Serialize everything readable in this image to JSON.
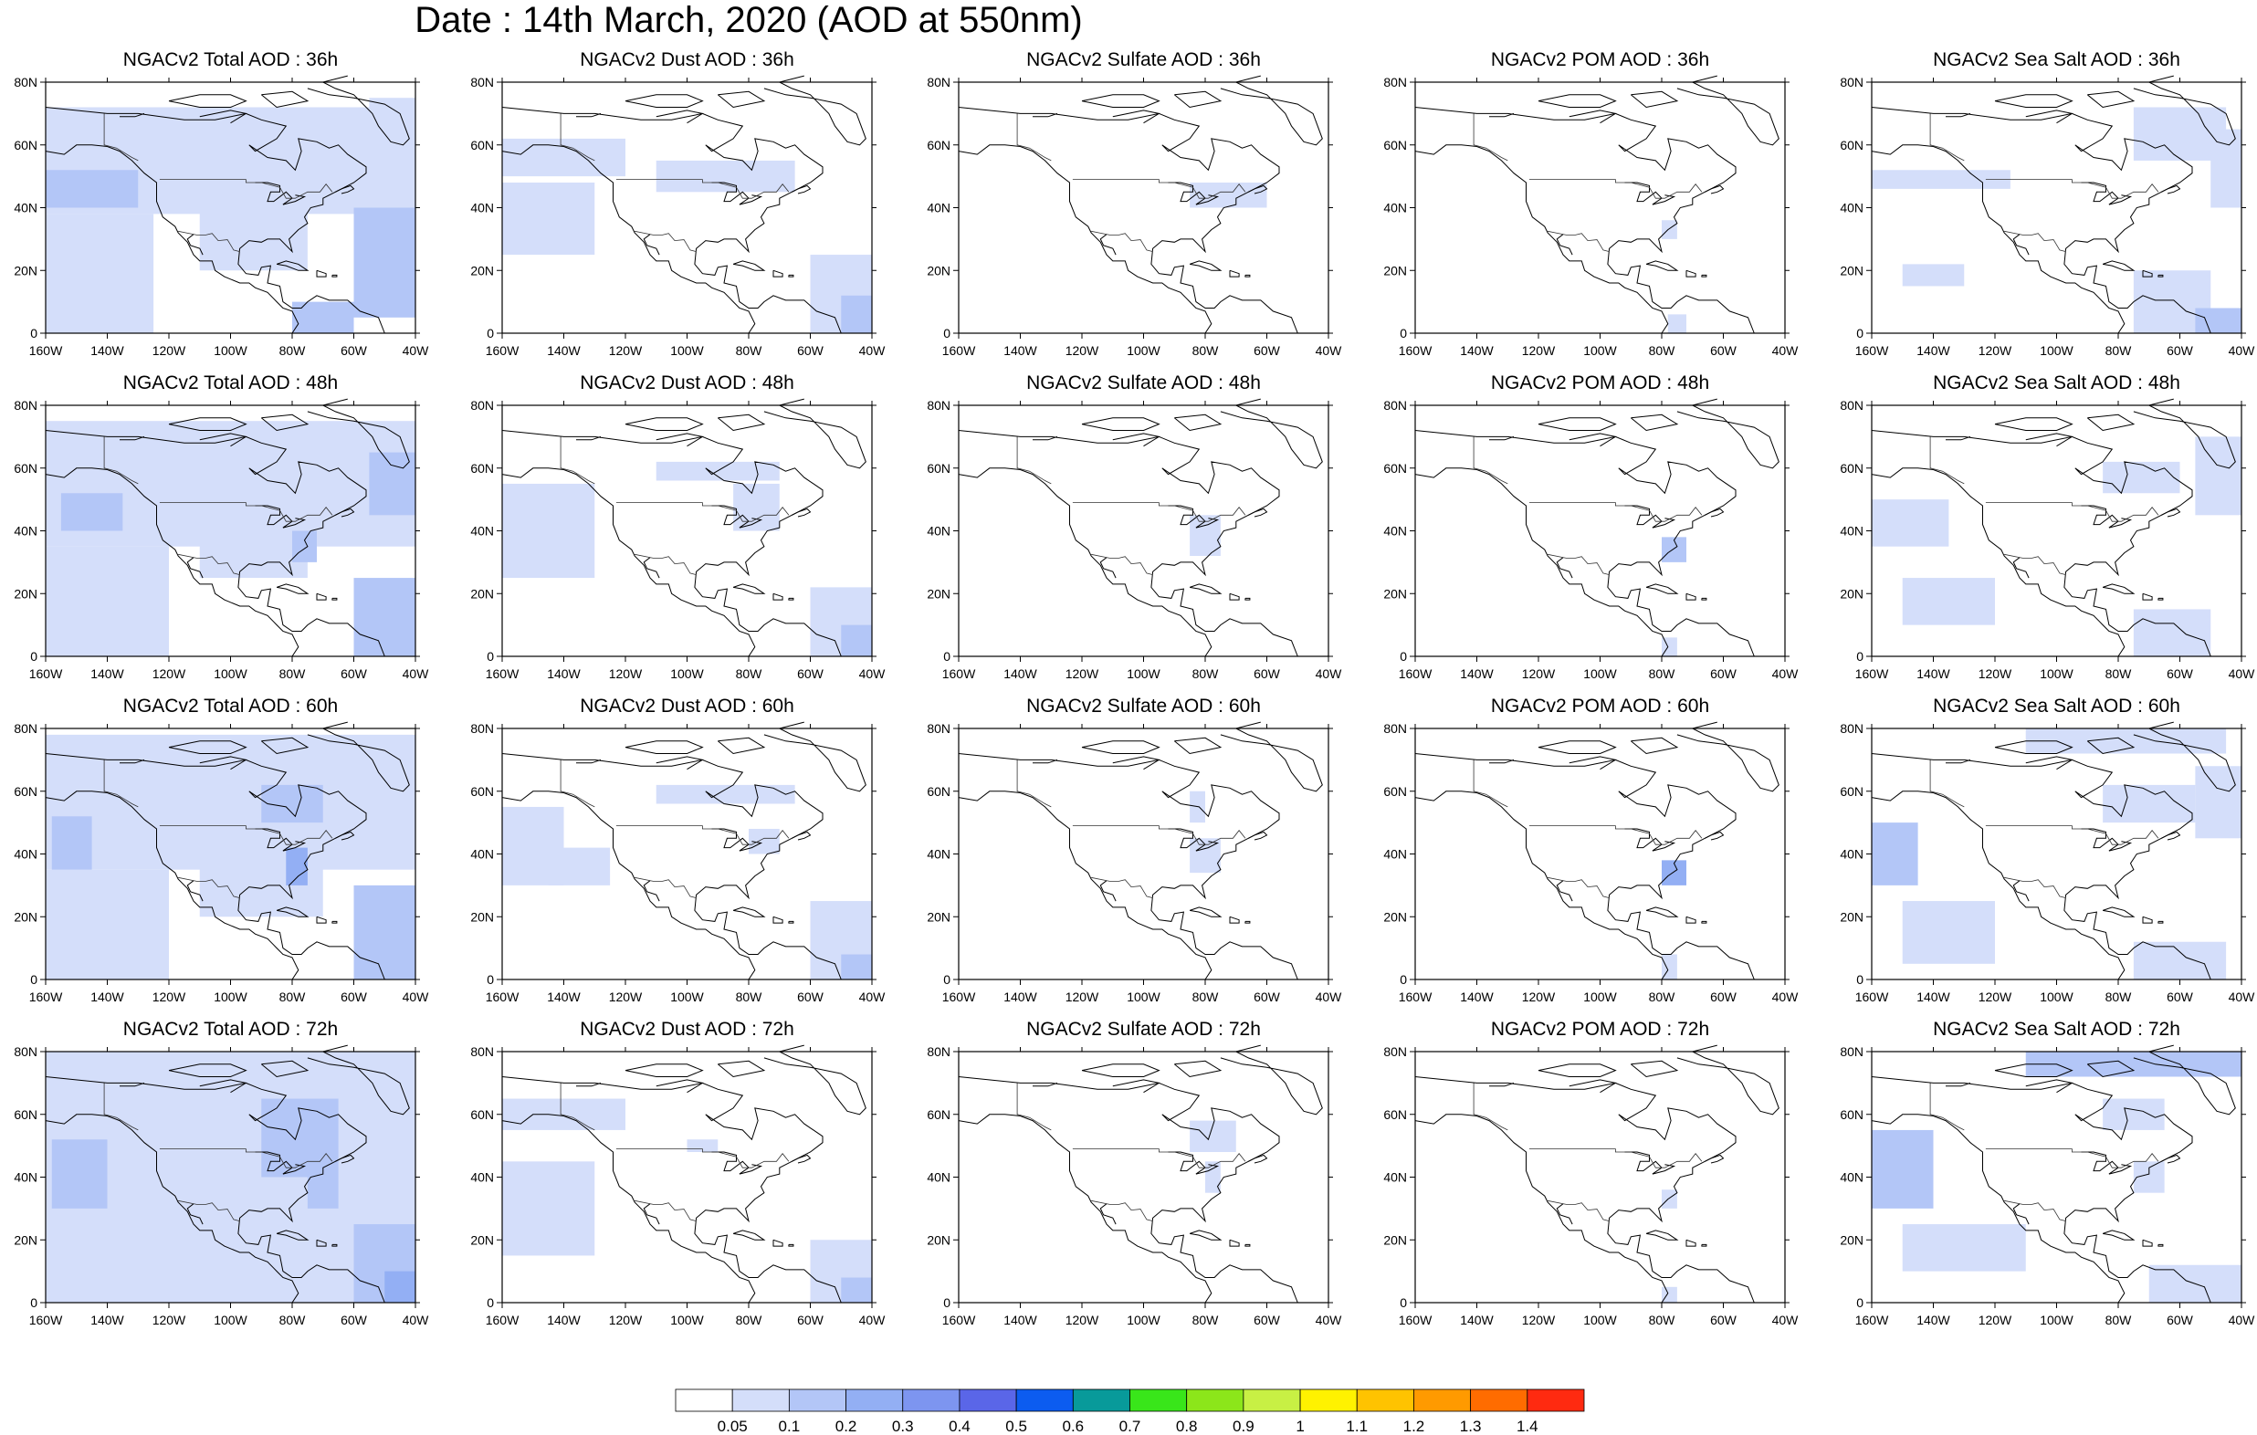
{
  "title": "Date : 14th March, 2020 (AOD at 550nm)",
  "chart_data": {
    "type": "heatmap",
    "layout": {
      "rows": 4,
      "columns": 5
    },
    "rows_forecast_hour": [
      "36h",
      "48h",
      "60h",
      "72h"
    ],
    "columns_species": [
      "Total",
      "Dust",
      "Sulfate",
      "POM",
      "Sea Salt"
    ],
    "panel_titles": [
      [
        "NGACv2 Total AOD : 36h",
        "NGACv2 Dust AOD : 36h",
        "NGACv2 Sulfate AOD : 36h",
        "NGACv2 POM AOD : 36h",
        "NGACv2 Sea Salt AOD : 36h"
      ],
      [
        "NGACv2 Total AOD : 48h",
        "NGACv2 Dust AOD : 48h",
        "NGACv2 Sulfate AOD : 48h",
        "NGACv2 POM AOD : 48h",
        "NGACv2 Sea Salt AOD : 48h"
      ],
      [
        "NGACv2 Total AOD : 60h",
        "NGACv2 Dust AOD : 60h",
        "NGACv2 Sulfate AOD : 60h",
        "NGACv2 POM AOD : 60h",
        "NGACv2 Sea Salt AOD : 60h"
      ],
      [
        "NGACv2 Total AOD : 72h",
        "NGACv2 Dust AOD : 72h",
        "NGACv2 Sulfate AOD : 72h",
        "NGACv2 POM AOD : 72h",
        "NGACv2 Sea Salt  AOD : 72h"
      ]
    ],
    "x_ticks": [
      "160W",
      "140W",
      "120W",
      "100W",
      "80W",
      "60W",
      "40W"
    ],
    "y_ticks": [
      "0",
      "20N",
      "40N",
      "60N",
      "80N"
    ],
    "xlim": [
      -160,
      -40
    ],
    "ylim": [
      0,
      80
    ],
    "colorbar": {
      "levels": [
        "0.05",
        "0.1",
        "0.2",
        "0.3",
        "0.4",
        "0.5",
        "0.6",
        "0.7",
        "0.8",
        "0.9",
        "1",
        "1.1",
        "1.2",
        "1.3",
        "1.4"
      ],
      "colors": [
        "#ffffff",
        "#d4defa",
        "#b3c6f7",
        "#93aff4",
        "#7d95f0",
        "#5a66e8",
        "#0c5cf0",
        "#089a9a",
        "#39e61a",
        "#8ce61a",
        "#c8f044",
        "#fff200",
        "#ffc300",
        "#ff9a00",
        "#ff6c00",
        "#ff2a10"
      ]
    },
    "aod_regions": [
      [
        [
          {
            "x": [
              -160,
              -40
            ],
            "y": [
              38,
              72
            ],
            "level": 1
          },
          {
            "x": [
              -160,
              -125
            ],
            "y": [
              0,
              38
            ],
            "level": 1
          },
          {
            "x": [
              -110,
              -75
            ],
            "y": [
              20,
              40
            ],
            "level": 1
          },
          {
            "x": [
              -160,
              -130
            ],
            "y": [
              40,
              52
            ],
            "level": 2
          },
          {
            "x": [
              -60,
              -40
            ],
            "y": [
              5,
              40
            ],
            "level": 2
          },
          {
            "x": [
              -80,
              -60
            ],
            "y": [
              0,
              10
            ],
            "level": 2
          },
          {
            "x": [
              -55,
              -40
            ],
            "y": [
              60,
              75
            ],
            "level": 1
          }
        ],
        [
          {
            "x": [
              -160,
              -120
            ],
            "y": [
              50,
              62
            ],
            "level": 1
          },
          {
            "x": [
              -160,
              -130
            ],
            "y": [
              25,
              48
            ],
            "level": 1
          },
          {
            "x": [
              -110,
              -65
            ],
            "y": [
              45,
              55
            ],
            "level": 1
          },
          {
            "x": [
              -60,
              -40
            ],
            "y": [
              0,
              25
            ],
            "level": 1
          },
          {
            "x": [
              -50,
              -40
            ],
            "y": [
              0,
              12
            ],
            "level": 2
          }
        ],
        [
          {
            "x": [
              -85,
              -60
            ],
            "y": [
              40,
              48
            ],
            "level": 1
          }
        ],
        [
          {
            "x": [
              -80,
              -75
            ],
            "y": [
              30,
              36
            ],
            "level": 1
          },
          {
            "x": [
              -78,
              -72
            ],
            "y": [
              0,
              6
            ],
            "level": 1
          }
        ],
        [
          {
            "x": [
              -160,
              -115
            ],
            "y": [
              46,
              52
            ],
            "level": 1
          },
          {
            "x": [
              -150,
              -130
            ],
            "y": [
              15,
              22
            ],
            "level": 1
          },
          {
            "x": [
              -75,
              -45
            ],
            "y": [
              55,
              72
            ],
            "level": 1
          },
          {
            "x": [
              -50,
              -40
            ],
            "y": [
              40,
              65
            ],
            "level": 1
          },
          {
            "x": [
              -75,
              -50
            ],
            "y": [
              0,
              20
            ],
            "level": 1
          },
          {
            "x": [
              -55,
              -40
            ],
            "y": [
              0,
              8
            ],
            "level": 2
          }
        ]
      ],
      [
        [
          {
            "x": [
              -160,
              -40
            ],
            "y": [
              35,
              75
            ],
            "level": 1
          },
          {
            "x": [
              -160,
              -120
            ],
            "y": [
              0,
              35
            ],
            "level": 1
          },
          {
            "x": [
              -110,
              -75
            ],
            "y": [
              25,
              40
            ],
            "level": 1
          },
          {
            "x": [
              -155,
              -135
            ],
            "y": [
              40,
              52
            ],
            "level": 2
          },
          {
            "x": [
              -80,
              -72
            ],
            "y": [
              30,
              40
            ],
            "level": 2
          },
          {
            "x": [
              -60,
              -40
            ],
            "y": [
              0,
              25
            ],
            "level": 2
          },
          {
            "x": [
              -55,
              -40
            ],
            "y": [
              45,
              65
            ],
            "level": 2
          }
        ],
        [
          {
            "x": [
              -160,
              -130
            ],
            "y": [
              25,
              55
            ],
            "level": 1
          },
          {
            "x": [
              -110,
              -70
            ],
            "y": [
              56,
              62
            ],
            "level": 1
          },
          {
            "x": [
              -85,
              -70
            ],
            "y": [
              40,
              55
            ],
            "level": 1
          },
          {
            "x": [
              -60,
              -40
            ],
            "y": [
              0,
              22
            ],
            "level": 1
          },
          {
            "x": [
              -50,
              -40
            ],
            "y": [
              0,
              10
            ],
            "level": 2
          }
        ],
        [
          {
            "x": [
              -85,
              -75
            ],
            "y": [
              32,
              45
            ],
            "level": 1
          }
        ],
        [
          {
            "x": [
              -80,
              -72
            ],
            "y": [
              30,
              38
            ],
            "level": 2
          },
          {
            "x": [
              -80,
              -75
            ],
            "y": [
              0,
              6
            ],
            "level": 1
          }
        ],
        [
          {
            "x": [
              -160,
              -135
            ],
            "y": [
              35,
              50
            ],
            "level": 1
          },
          {
            "x": [
              -150,
              -120
            ],
            "y": [
              10,
              25
            ],
            "level": 1
          },
          {
            "x": [
              -85,
              -60
            ],
            "y": [
              52,
              62
            ],
            "level": 1
          },
          {
            "x": [
              -55,
              -40
            ],
            "y": [
              45,
              70
            ],
            "level": 1
          },
          {
            "x": [
              -75,
              -50
            ],
            "y": [
              0,
              15
            ],
            "level": 1
          }
        ]
      ],
      [
        [
          {
            "x": [
              -160,
              -40
            ],
            "y": [
              35,
              78
            ],
            "level": 1
          },
          {
            "x": [
              -160,
              -120
            ],
            "y": [
              0,
              35
            ],
            "level": 1
          },
          {
            "x": [
              -110,
              -70
            ],
            "y": [
              20,
              40
            ],
            "level": 1
          },
          {
            "x": [
              -158,
              -145
            ],
            "y": [
              35,
              52
            ],
            "level": 2
          },
          {
            "x": [
              -82,
              -75
            ],
            "y": [
              30,
              42
            ],
            "level": 3
          },
          {
            "x": [
              -60,
              -40
            ],
            "y": [
              0,
              30
            ],
            "level": 2
          },
          {
            "x": [
              -90,
              -70
            ],
            "y": [
              50,
              62
            ],
            "level": 2
          }
        ],
        [
          {
            "x": [
              -160,
              -140
            ],
            "y": [
              30,
              55
            ],
            "level": 1
          },
          {
            "x": [
              -145,
              -125
            ],
            "y": [
              30,
              42
            ],
            "level": 1
          },
          {
            "x": [
              -110,
              -65
            ],
            "y": [
              56,
              62
            ],
            "level": 1
          },
          {
            "x": [
              -80,
              -70
            ],
            "y": [
              40,
              48
            ],
            "level": 1
          },
          {
            "x": [
              -60,
              -40
            ],
            "y": [
              0,
              25
            ],
            "level": 1
          },
          {
            "x": [
              -50,
              -40
            ],
            "y": [
              0,
              8
            ],
            "level": 2
          }
        ],
        [
          {
            "x": [
              -85,
              -80
            ],
            "y": [
              50,
              60
            ],
            "level": 1
          },
          {
            "x": [
              -85,
              -75
            ],
            "y": [
              34,
              45
            ],
            "level": 1
          }
        ],
        [
          {
            "x": [
              -80,
              -72
            ],
            "y": [
              30,
              38
            ],
            "level": 3
          },
          {
            "x": [
              -80,
              -75
            ],
            "y": [
              0,
              8
            ],
            "level": 1
          }
        ],
        [
          {
            "x": [
              -160,
              -145
            ],
            "y": [
              30,
              50
            ],
            "level": 2
          },
          {
            "x": [
              -110,
              -45
            ],
            "y": [
              72,
              80
            ],
            "level": 1
          },
          {
            "x": [
              -85,
              -55
            ],
            "y": [
              50,
              62
            ],
            "level": 1
          },
          {
            "x": [
              -150,
              -120
            ],
            "y": [
              5,
              25
            ],
            "level": 1
          },
          {
            "x": [
              -55,
              -40
            ],
            "y": [
              45,
              68
            ],
            "level": 1
          },
          {
            "x": [
              -75,
              -45
            ],
            "y": [
              0,
              12
            ],
            "level": 1
          }
        ]
      ],
      [
        [
          {
            "x": [
              -160,
              -40
            ],
            "y": [
              0,
              80
            ],
            "level": 1
          },
          {
            "x": [
              -158,
              -140
            ],
            "y": [
              30,
              52
            ],
            "level": 2
          },
          {
            "x": [
              -90,
              -65
            ],
            "y": [
              40,
              65
            ],
            "level": 2
          },
          {
            "x": [
              -75,
              -65
            ],
            "y": [
              30,
              40
            ],
            "level": 2
          },
          {
            "x": [
              -60,
              -40
            ],
            "y": [
              0,
              25
            ],
            "level": 2
          },
          {
            "x": [
              -50,
              -40
            ],
            "y": [
              0,
              10
            ],
            "level": 3
          }
        ],
        [
          {
            "x": [
              -160,
              -120
            ],
            "y": [
              55,
              65
            ],
            "level": 1
          },
          {
            "x": [
              -160,
              -130
            ],
            "y": [
              15,
              45
            ],
            "level": 1
          },
          {
            "x": [
              -100,
              -90
            ],
            "y": [
              48,
              52
            ],
            "level": 1
          },
          {
            "x": [
              -60,
              -40
            ],
            "y": [
              0,
              20
            ],
            "level": 1
          },
          {
            "x": [
              -50,
              -40
            ],
            "y": [
              0,
              8
            ],
            "level": 2
          }
        ],
        [
          {
            "x": [
              -85,
              -70
            ],
            "y": [
              48,
              58
            ],
            "level": 1
          },
          {
            "x": [
              -80,
              -75
            ],
            "y": [
              35,
              45
            ],
            "level": 1
          }
        ],
        [
          {
            "x": [
              -80,
              -75
            ],
            "y": [
              30,
              36
            ],
            "level": 1
          },
          {
            "x": [
              -80,
              -75
            ],
            "y": [
              0,
              5
            ],
            "level": 1
          }
        ],
        [
          {
            "x": [
              -160,
              -140
            ],
            "y": [
              30,
              55
            ],
            "level": 2
          },
          {
            "x": [
              -110,
              -40
            ],
            "y": [
              72,
              80
            ],
            "level": 2
          },
          {
            "x": [
              -85,
              -65
            ],
            "y": [
              55,
              65
            ],
            "level": 1
          },
          {
            "x": [
              -150,
              -110
            ],
            "y": [
              10,
              25
            ],
            "level": 1
          },
          {
            "x": [
              -75,
              -65
            ],
            "y": [
              35,
              45
            ],
            "level": 1
          },
          {
            "x": [
              -70,
              -40
            ],
            "y": [
              0,
              12
            ],
            "level": 1
          }
        ]
      ]
    ]
  }
}
